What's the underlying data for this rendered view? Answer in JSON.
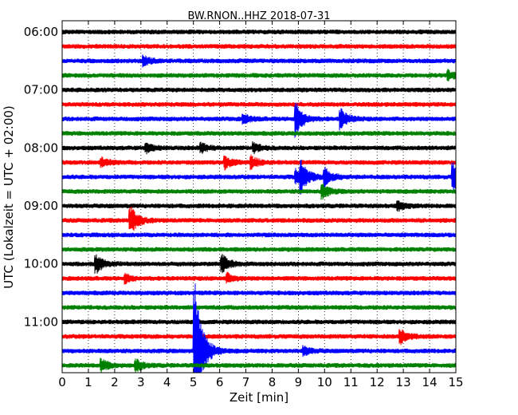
{
  "chart_data": {
    "type": "line",
    "title": "BW.RNON..HHZ 2018-07-31",
    "xlabel": "Zeit  [min]",
    "ylabel": "UTC (Lokalzeit = UTC + 02:00)",
    "xlim": [
      0,
      15
    ],
    "x_ticks": [
      "0",
      "1",
      "2",
      "3",
      "4",
      "5",
      "6",
      "7",
      "8",
      "9",
      "10",
      "11",
      "12",
      "13",
      "14",
      "15"
    ],
    "y_tick_labels": [
      "06:00",
      "07:00",
      "08:00",
      "09:00",
      "10:00",
      "11:00"
    ],
    "trace_interval_minutes": 15,
    "trace_count": 24,
    "trace_colors": [
      "#000000",
      "#ff0000",
      "#0000ff",
      "#008000"
    ],
    "grid": "vertical dotted",
    "events": [
      {
        "trace": 2,
        "minute": 3.1,
        "amp": 0.3
      },
      {
        "trace": 3,
        "minute": 14.7,
        "amp": 0.3
      },
      {
        "trace": 6,
        "minute": 6.9,
        "amp": 0.3
      },
      {
        "trace": 6,
        "minute": 8.9,
        "amp": 1.2
      },
      {
        "trace": 6,
        "minute": 10.6,
        "amp": 0.7
      },
      {
        "trace": 8,
        "minute": 3.2,
        "amp": 0.3
      },
      {
        "trace": 8,
        "minute": 5.3,
        "amp": 0.3
      },
      {
        "trace": 8,
        "minute": 7.3,
        "amp": 0.3
      },
      {
        "trace": 9,
        "minute": 1.5,
        "amp": 0.3
      },
      {
        "trace": 9,
        "minute": 6.2,
        "amp": 0.4
      },
      {
        "trace": 9,
        "minute": 7.2,
        "amp": 0.4
      },
      {
        "trace": 10,
        "minute": 8.9,
        "amp": 0.5
      },
      {
        "trace": 10,
        "minute": 9.1,
        "amp": 0.9
      },
      {
        "trace": 10,
        "minute": 10.0,
        "amp": 0.6
      },
      {
        "trace": 10,
        "minute": 14.9,
        "amp": 0.9
      },
      {
        "trace": 11,
        "minute": 9.9,
        "amp": 0.5
      },
      {
        "trace": 12,
        "minute": 12.8,
        "amp": 0.3
      },
      {
        "trace": 13,
        "minute": 2.6,
        "amp": 1.0
      },
      {
        "trace": 16,
        "minute": 1.3,
        "amp": 0.6
      },
      {
        "trace": 16,
        "minute": 6.1,
        "amp": 0.6
      },
      {
        "trace": 17,
        "minute": 2.4,
        "amp": 0.3
      },
      {
        "trace": 17,
        "minute": 6.3,
        "amp": 0.3
      },
      {
        "trace": 21,
        "minute": 12.9,
        "amp": 0.5
      },
      {
        "trace": 22,
        "minute": 5.05,
        "amp": 5.5
      },
      {
        "trace": 22,
        "minute": 9.2,
        "amp": 0.3
      },
      {
        "trace": 23,
        "minute": 1.5,
        "amp": 0.4
      },
      {
        "trace": 23,
        "minute": 2.8,
        "amp": 0.4
      }
    ]
  }
}
